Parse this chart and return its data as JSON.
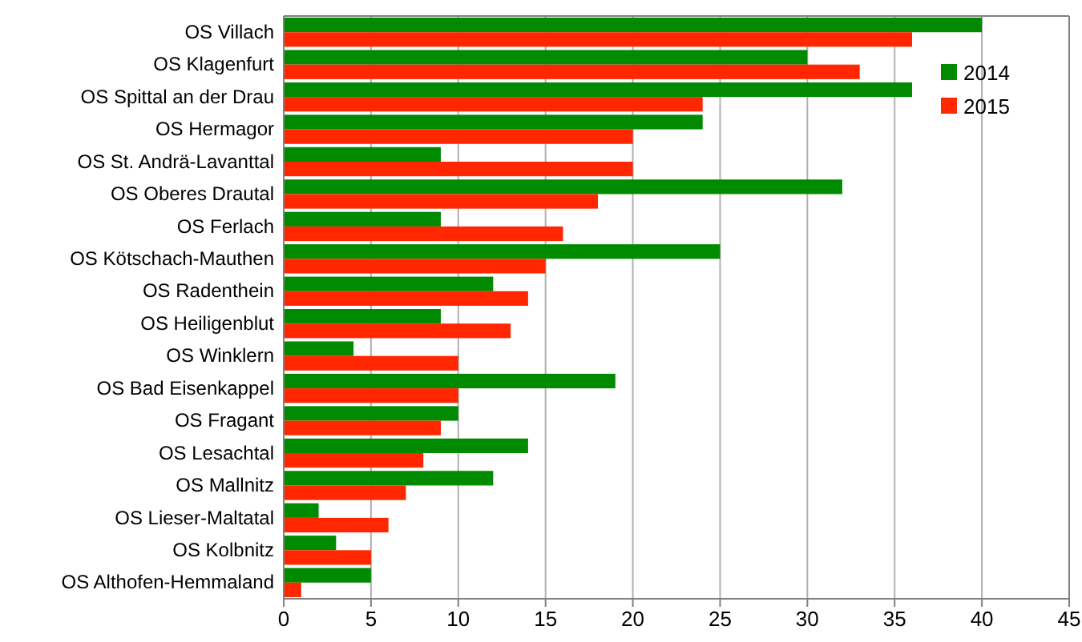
{
  "chart_data": {
    "type": "bar",
    "orientation": "horizontal",
    "categories": [
      "OS Villach",
      "OS Klagenfurt",
      "OS Spittal an der Drau",
      "OS Hermagor",
      "OS St. Andrä-Lavanttal",
      "OS Oberes Drautal",
      "OS Ferlach",
      "OS Kötschach-Mauthen",
      "OS Radenthein",
      "OS Heiligenblut",
      "OS Winklern",
      "OS Bad Eisenkappel",
      "OS Fragant",
      "OS Lesachtal",
      "OS Mallnitz",
      "OS Lieser-Maltatal",
      "OS Kolbnitz",
      "OS Althofen-Hemmaland"
    ],
    "series": [
      {
        "name": "2014",
        "color": "#008a00",
        "values": [
          40,
          30,
          36,
          24,
          9,
          32,
          9,
          25,
          12,
          9,
          4,
          19,
          10,
          14,
          12,
          2,
          3,
          5
        ]
      },
      {
        "name": "2015",
        "color": "#ff2600",
        "values": [
          36,
          33,
          24,
          20,
          20,
          18,
          16,
          15,
          14,
          13,
          10,
          10,
          9,
          8,
          7,
          6,
          5,
          1
        ]
      }
    ],
    "xlim": [
      0,
      45
    ],
    "xticks": [
      0,
      5,
      10,
      15,
      20,
      25,
      30,
      35,
      40,
      45
    ],
    "grid": "x",
    "legend": "top right"
  }
}
